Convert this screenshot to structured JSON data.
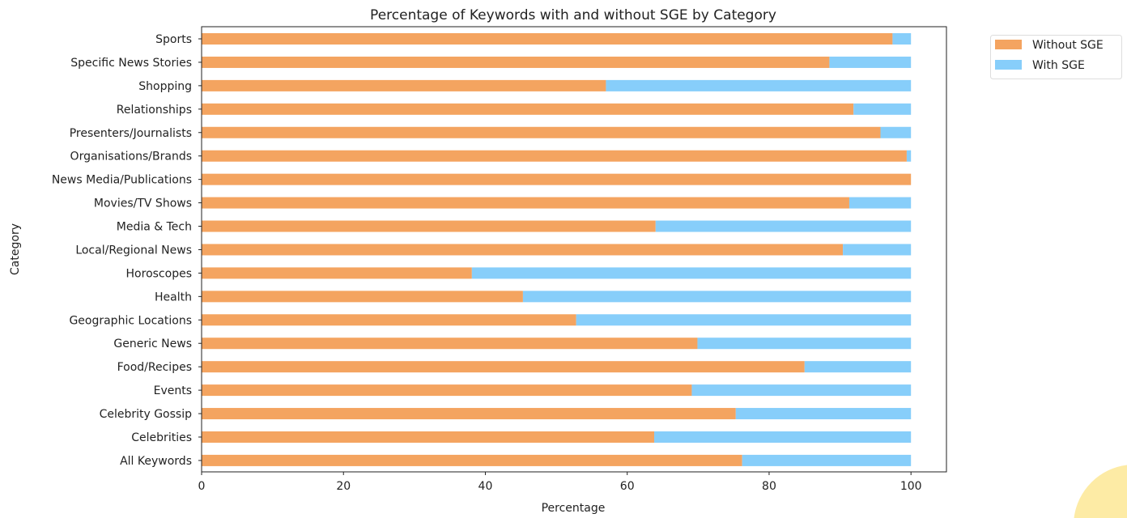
{
  "chart_data": {
    "type": "bar",
    "orientation": "horizontal",
    "stacked": true,
    "title": "Percentage of Keywords with and without SGE by Category",
    "xlabel": "Percentage",
    "ylabel": "Category",
    "xlim": [
      0,
      105
    ],
    "xticks": [
      0,
      20,
      40,
      60,
      80,
      100
    ],
    "grid": false,
    "legend_position": "upper-right-outside",
    "categories": [
      "Sports",
      "Specific News Stories",
      "Shopping",
      "Relationships",
      "Presenters/Journalists",
      "Organisations/Brands",
      "News Media/Publications",
      "Movies/TV Shows",
      "Media & Tech",
      "Local/Regional News",
      "Horoscopes",
      "Health",
      "Geographic Locations",
      "Generic News",
      "Food/Recipes",
      "Events",
      "Celebrity Gossip",
      "Celebrities",
      "All Keywords"
    ],
    "series": [
      {
        "name": "Without SGE",
        "color": "#f4a460",
        "values": [
          97.4,
          88.5,
          57.0,
          91.9,
          95.7,
          99.4,
          100,
          91.3,
          64.0,
          90.4,
          38.1,
          45.3,
          52.8,
          69.9,
          85.0,
          69.1,
          75.3,
          63.8,
          76.2
        ]
      },
      {
        "name": "With SGE",
        "color": "#87cefa",
        "values": [
          2.6,
          11.5,
          43.0,
          8.1,
          4.3,
          0.6,
          0,
          8.7,
          36.0,
          9.6,
          61.9,
          54.7,
          47.2,
          30.1,
          15.0,
          30.9,
          24.7,
          36.2,
          23.8
        ]
      }
    ]
  }
}
